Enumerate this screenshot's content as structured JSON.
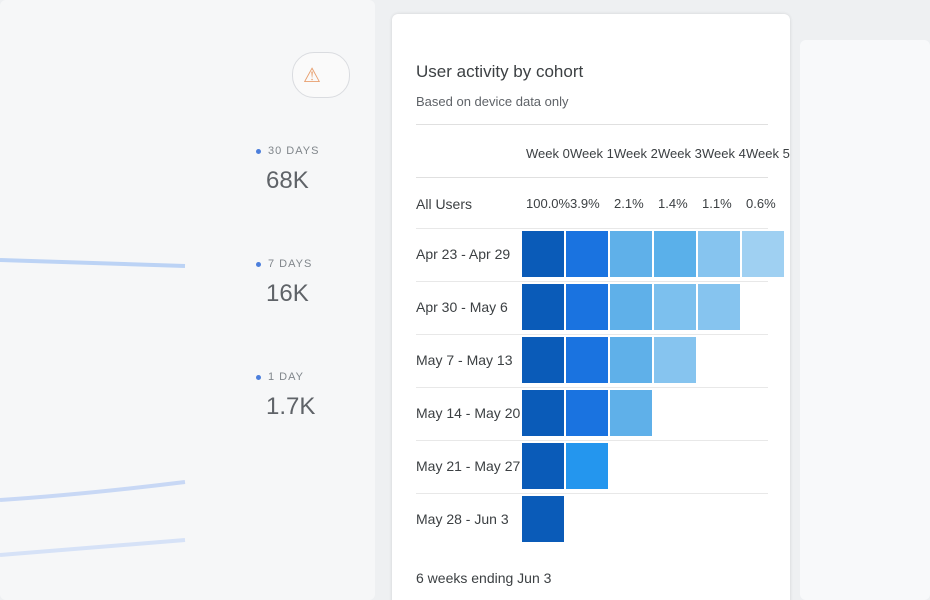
{
  "summary": {
    "items": [
      {
        "label": "30 DAYS",
        "value": "68K"
      },
      {
        "label": "7 DAYS",
        "value": "16K"
      },
      {
        "label": "1 DAY",
        "value": "1.7K"
      }
    ]
  },
  "card": {
    "title": "User activity by cohort",
    "subtitle": "Based on device data only",
    "columns": [
      "Week 0",
      "Week 1",
      "Week 2",
      "Week 3",
      "Week 4",
      "Week 5"
    ],
    "all_users": {
      "label": "All Users",
      "cells": [
        "100.0%",
        "3.9%",
        "2.1%",
        "1.4%",
        "1.1%",
        "0.6%"
      ]
    },
    "rows": [
      {
        "label": "Apr 23 - Apr 29",
        "colors": [
          "#0a5bb8",
          "#1a73e0",
          "#5fb0e9",
          "#5ab0ea",
          "#86c4ef",
          "#9fd0f2"
        ]
      },
      {
        "label": "Apr 30 - May 6",
        "colors": [
          "#0a5bb8",
          "#1a73e0",
          "#5fb0e9",
          "#7cc0ee",
          "#86c4ef"
        ]
      },
      {
        "label": "May 7 - May 13",
        "colors": [
          "#0a5bb8",
          "#1a73e0",
          "#5fb0e9",
          "#86c4ef"
        ]
      },
      {
        "label": "May 14 - May 20",
        "colors": [
          "#0a5bb8",
          "#1a73e0",
          "#5fb0e9"
        ]
      },
      {
        "label": "May 21 - May 27",
        "colors": [
          "#0a5bb8",
          "#2496ee"
        ]
      },
      {
        "label": "May 28 - Jun 3",
        "colors": [
          "#0a5bb8"
        ]
      }
    ],
    "footer": "6 weeks ending Jun 3"
  }
}
